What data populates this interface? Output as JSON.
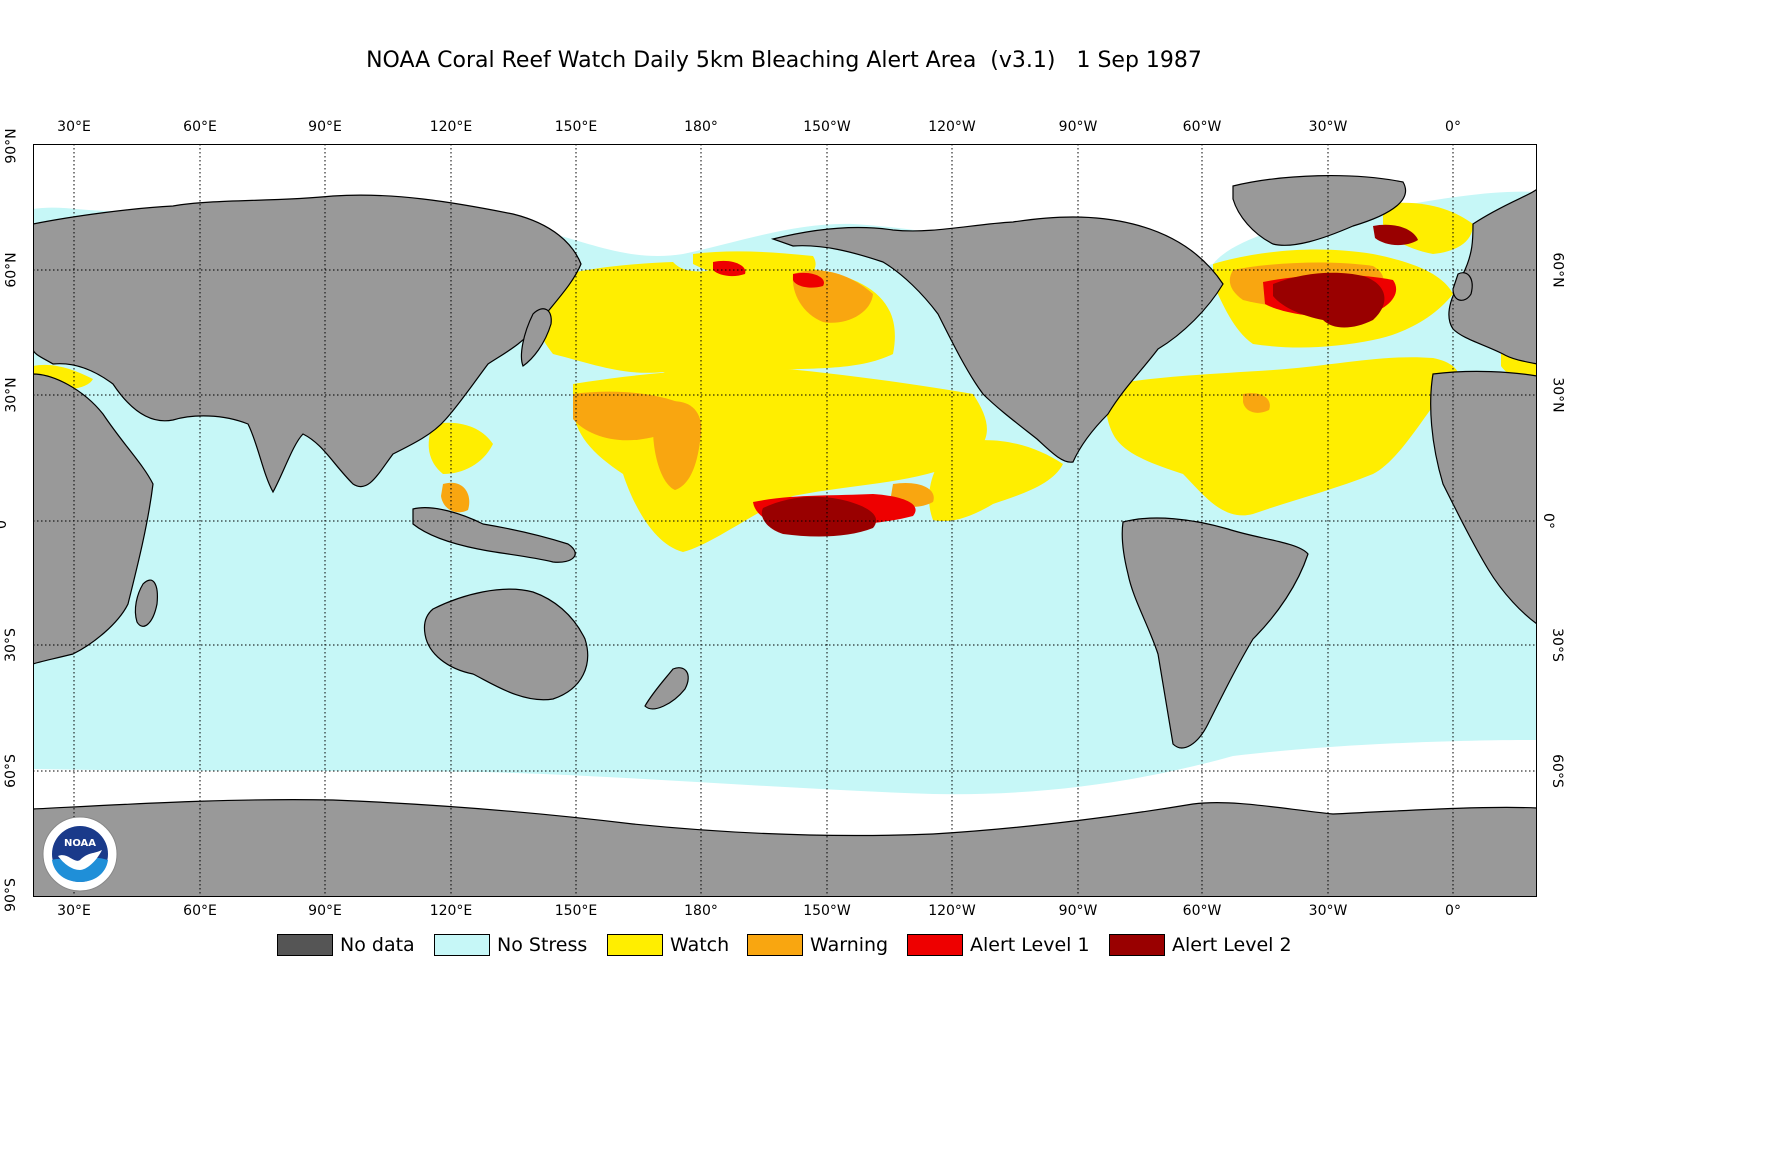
{
  "title": "NOAA Coral Reef Watch Daily 5km Bleaching Alert Area  (v3.1)   1 Sep 1987",
  "longitude_labels": [
    "30°E",
    "60°E",
    "90°E",
    "120°E",
    "150°E",
    "180°",
    "150°W",
    "120°W",
    "90°W",
    "60°W",
    "30°W",
    "0°"
  ],
  "latitude_labels_left": [
    "90°N",
    "60°N",
    "30°N",
    "0°",
    "30°S",
    "60°S",
    "90°S"
  ],
  "latitude_labels_right": [
    "60°N",
    "30°N",
    "0°",
    "30°S",
    "60°S"
  ],
  "legend": [
    {
      "label": "No data",
      "color": "#555555"
    },
    {
      "label": "No Stress",
      "color": "#c6f7f7"
    },
    {
      "label": "Watch",
      "color": "#ffee00"
    },
    {
      "label": "Warning",
      "color": "#f9a610"
    },
    {
      "label": "Alert Level 1",
      "color": "#ee0000"
    },
    {
      "label": "Alert Level 2",
      "color": "#990000"
    }
  ],
  "colors": {
    "ocean_no_stress": "#c6f7f7",
    "land": "#999999",
    "sea_ice_no_data_white": "#ffffff",
    "watch": "#ffee00",
    "warning": "#f9a610",
    "alert1": "#ee0000",
    "alert2": "#990000"
  },
  "logo": {
    "icon": "noaa-logo-icon",
    "text": "NOAA"
  }
}
